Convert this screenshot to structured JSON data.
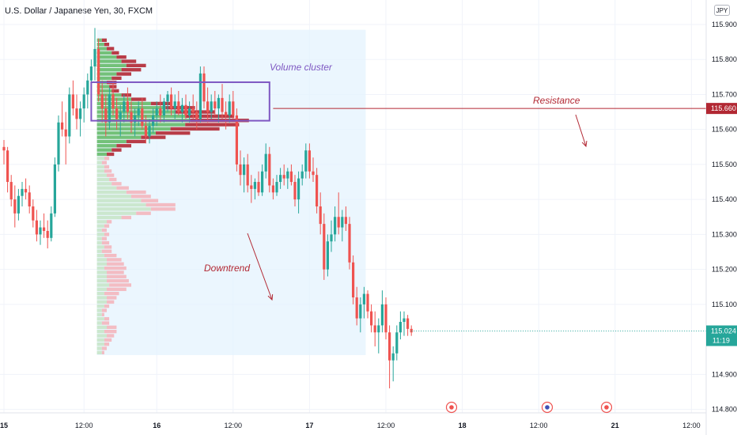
{
  "header": {
    "symbol_title": "U.S. Dollar / Japanese Yen, 30, FXCM",
    "currency": "JPY"
  },
  "colors": {
    "up": "#26a69a",
    "down": "#ef5350",
    "resistance": "#b22833",
    "box": "#7e57c2",
    "vp_up": "#66bb6a",
    "vp_down": "#b22833",
    "vp_up_light": "#c8e6c9",
    "vp_down_light": "#f4b6bd",
    "zone": "#e3f2fd",
    "price_tag": "#26a69a"
  },
  "chart_data": {
    "type": "candlestick",
    "title": "U.S. Dollar / Japanese Yen, 30, FXCM",
    "ylim": [
      114.79,
      115.97
    ],
    "y_ticks": [
      "115.900",
      "115.800",
      "115.700",
      "115.600",
      "115.500",
      "115.400",
      "115.300",
      "115.200",
      "115.100",
      "114.900",
      "114.800"
    ],
    "x_ticks": [
      "15",
      "12:00",
      "16",
      "12:00",
      "17",
      "12:00",
      "18",
      "12:00",
      "21",
      "12:00"
    ],
    "x_ticks_index": [
      0,
      22,
      42,
      63,
      84,
      105,
      126,
      147,
      168,
      189
    ],
    "candles": [
      [
        115.55,
        115.57,
        115.5,
        115.54
      ],
      [
        115.54,
        115.55,
        115.42,
        115.45
      ],
      [
        115.45,
        115.47,
        115.38,
        115.4
      ],
      [
        115.4,
        115.44,
        115.32,
        115.36
      ],
      [
        115.36,
        115.43,
        115.34,
        115.41
      ],
      [
        115.41,
        115.45,
        115.38,
        115.43
      ],
      [
        115.43,
        115.46,
        115.4,
        115.42
      ],
      [
        115.42,
        115.44,
        115.36,
        115.38
      ],
      [
        115.38,
        115.4,
        115.32,
        115.34
      ],
      [
        115.34,
        115.37,
        115.28,
        115.3
      ],
      [
        115.3,
        115.34,
        115.27,
        115.32
      ],
      [
        115.32,
        115.36,
        115.29,
        115.31
      ],
      [
        115.31,
        115.34,
        115.26,
        115.29
      ],
      [
        115.29,
        115.38,
        115.28,
        115.36
      ],
      [
        115.36,
        115.52,
        115.35,
        115.5
      ],
      [
        115.5,
        115.64,
        115.48,
        115.62
      ],
      [
        115.62,
        115.68,
        115.58,
        115.6
      ],
      [
        115.6,
        115.65,
        115.5,
        115.58
      ],
      [
        115.58,
        115.72,
        115.56,
        115.7
      ],
      [
        115.7,
        115.74,
        115.64,
        115.66
      ],
      [
        115.66,
        115.7,
        115.6,
        115.63
      ],
      [
        115.63,
        115.68,
        115.58,
        115.66
      ],
      [
        115.66,
        115.72,
        115.62,
        115.7
      ],
      [
        115.7,
        115.76,
        115.66,
        115.74
      ],
      [
        115.74,
        115.8,
        115.7,
        115.78
      ],
      [
        115.78,
        115.89,
        115.74,
        115.83
      ],
      [
        115.83,
        115.86,
        115.68,
        115.7
      ],
      [
        115.7,
        115.74,
        115.62,
        115.66
      ],
      [
        115.66,
        115.7,
        115.58,
        115.62
      ],
      [
        115.62,
        115.72,
        115.6,
        115.7
      ],
      [
        115.7,
        115.74,
        115.64,
        115.66
      ],
      [
        115.66,
        115.69,
        115.6,
        115.63
      ],
      [
        115.63,
        115.67,
        115.58,
        115.65
      ],
      [
        115.65,
        115.7,
        115.62,
        115.68
      ],
      [
        115.68,
        115.72,
        115.63,
        115.65
      ],
      [
        115.65,
        115.68,
        115.59,
        115.62
      ],
      [
        115.62,
        115.66,
        115.58,
        115.64
      ],
      [
        115.64,
        115.68,
        115.61,
        115.66
      ],
      [
        115.66,
        115.69,
        115.6,
        115.61
      ],
      [
        115.61,
        115.64,
        115.56,
        115.58
      ],
      [
        115.58,
        115.63,
        115.56,
        115.61
      ],
      [
        115.61,
        115.66,
        115.59,
        115.64
      ],
      [
        115.64,
        115.68,
        115.61,
        115.66
      ],
      [
        115.66,
        115.7,
        115.62,
        115.64
      ],
      [
        115.64,
        115.69,
        115.62,
        115.68
      ],
      [
        115.68,
        115.71,
        115.65,
        115.7
      ],
      [
        115.7,
        115.72,
        115.64,
        115.66
      ],
      [
        115.66,
        115.7,
        115.63,
        115.68
      ],
      [
        115.68,
        115.71,
        115.64,
        115.65
      ],
      [
        115.65,
        115.69,
        115.62,
        115.67
      ],
      [
        115.67,
        115.7,
        115.63,
        115.64
      ],
      [
        115.64,
        115.68,
        115.62,
        115.66
      ],
      [
        115.66,
        115.7,
        115.63,
        115.65
      ],
      [
        115.65,
        115.68,
        115.6,
        115.63
      ],
      [
        115.63,
        115.78,
        115.62,
        115.76
      ],
      [
        115.76,
        115.78,
        115.66,
        115.68
      ],
      [
        115.68,
        115.72,
        115.62,
        115.65
      ],
      [
        115.65,
        115.7,
        115.63,
        115.68
      ],
      [
        115.68,
        115.71,
        115.64,
        115.66
      ],
      [
        115.66,
        115.7,
        115.62,
        115.69
      ],
      [
        115.69,
        115.73,
        115.63,
        115.65
      ],
      [
        115.65,
        115.68,
        115.6,
        115.64
      ],
      [
        115.64,
        115.7,
        115.62,
        115.68
      ],
      [
        115.68,
        115.71,
        115.63,
        115.64
      ],
      [
        115.64,
        115.66,
        115.48,
        115.5
      ],
      [
        115.5,
        115.54,
        115.44,
        115.47
      ],
      [
        115.47,
        115.52,
        115.42,
        115.5
      ],
      [
        115.5,
        115.53,
        115.42,
        115.44
      ],
      [
        115.44,
        115.47,
        115.39,
        115.43
      ],
      [
        115.43,
        115.46,
        115.4,
        115.45
      ],
      [
        115.45,
        115.48,
        115.41,
        115.42
      ],
      [
        115.42,
        115.5,
        115.41,
        115.48
      ],
      [
        115.48,
        115.56,
        115.46,
        115.53
      ],
      [
        115.53,
        115.55,
        115.42,
        115.44
      ],
      [
        115.44,
        115.46,
        115.4,
        115.42
      ],
      [
        115.42,
        115.47,
        115.41,
        115.45
      ],
      [
        115.45,
        115.49,
        115.43,
        115.47
      ],
      [
        115.47,
        115.5,
        115.44,
        115.46
      ],
      [
        115.46,
        115.49,
        115.43,
        115.48
      ],
      [
        115.48,
        115.5,
        115.44,
        115.45
      ],
      [
        115.45,
        115.47,
        115.38,
        115.4
      ],
      [
        115.4,
        115.48,
        115.36,
        115.46
      ],
      [
        115.46,
        115.5,
        115.44,
        115.48
      ],
      [
        115.48,
        115.56,
        115.46,
        115.54
      ],
      [
        115.54,
        115.56,
        115.46,
        115.48
      ],
      [
        115.48,
        115.52,
        115.45,
        115.47
      ],
      [
        115.47,
        115.49,
        115.36,
        115.38
      ],
      [
        115.38,
        115.42,
        115.3,
        115.33
      ],
      [
        115.33,
        115.36,
        115.17,
        115.2
      ],
      [
        115.2,
        115.3,
        115.18,
        115.28
      ],
      [
        115.28,
        115.34,
        115.25,
        115.3
      ],
      [
        115.3,
        115.38,
        115.28,
        115.35
      ],
      [
        115.35,
        115.42,
        115.3,
        115.32
      ],
      [
        115.32,
        115.37,
        115.28,
        115.35
      ],
      [
        115.35,
        115.38,
        115.31,
        115.33
      ],
      [
        115.33,
        115.35,
        115.2,
        115.22
      ],
      [
        115.22,
        115.24,
        115.1,
        115.12
      ],
      [
        115.12,
        115.15,
        115.04,
        115.06
      ],
      [
        115.06,
        115.12,
        115.02,
        115.1
      ],
      [
        115.1,
        115.15,
        115.06,
        115.13
      ],
      [
        115.13,
        115.14,
        115.06,
        115.08
      ],
      [
        115.08,
        115.1,
        115.02,
        115.04
      ],
      [
        115.04,
        115.08,
        114.98,
        115.02
      ],
      [
        115.02,
        115.06,
        114.96,
        115.04
      ],
      [
        115.04,
        115.14,
        115.02,
        115.1
      ],
      [
        115.1,
        115.12,
        115.0,
        115.02
      ],
      [
        115.02,
        115.04,
        114.86,
        114.94
      ],
      [
        114.94,
        114.98,
        114.88,
        114.96
      ],
      [
        114.96,
        115.04,
        114.94,
        115.02
      ],
      [
        115.02,
        115.08,
        115.0,
        115.05
      ],
      [
        115.05,
        115.08,
        115.01,
        115.06
      ],
      [
        115.06,
        115.07,
        115.01,
        115.03
      ],
      [
        115.03,
        115.04,
        115.01,
        115.02
      ]
    ],
    "volume_profile": {
      "price_step": 0.01,
      "price_start": 114.95,
      "rows": [
        [
          2,
          1
        ],
        [
          2,
          2
        ],
        [
          3,
          2
        ],
        [
          3,
          3
        ],
        [
          4,
          3
        ],
        [
          3,
          5
        ],
        [
          4,
          4
        ],
        [
          2,
          3
        ],
        [
          3,
          2
        ],
        [
          2,
          1
        ],
        [
          2,
          2
        ],
        [
          3,
          2
        ],
        [
          4,
          3
        ],
        [
          4,
          4
        ],
        [
          3,
          6
        ],
        [
          4,
          8
        ],
        [
          5,
          9
        ],
        [
          4,
          9
        ],
        [
          4,
          8
        ],
        [
          4,
          7
        ],
        [
          3,
          9
        ],
        [
          4,
          7
        ],
        [
          4,
          6
        ],
        [
          3,
          5
        ],
        [
          2,
          4
        ],
        [
          3,
          3
        ],
        [
          2,
          3
        ],
        [
          2,
          2
        ],
        [
          3,
          2
        ],
        [
          2,
          2
        ],
        [
          3,
          2
        ],
        [
          4,
          2
        ],
        [
          10,
          4
        ],
        [
          16,
          6
        ],
        [
          22,
          10
        ],
        [
          20,
          12
        ],
        [
          18,
          7
        ],
        [
          14,
          8
        ],
        [
          12,
          8
        ],
        [
          8,
          5
        ],
        [
          6,
          4
        ],
        [
          5,
          3
        ],
        [
          4,
          3
        ],
        [
          3,
          3
        ],
        [
          3,
          2
        ],
        [
          2,
          2
        ],
        [
          3,
          2
        ],
        [
          4,
          3
        ],
        [
          6,
          4
        ],
        [
          8,
          6
        ],
        [
          12,
          8
        ],
        [
          18,
          10
        ],
        [
          24,
          14
        ],
        [
          30,
          20
        ],
        [
          36,
          22
        ],
        [
          38,
          24
        ],
        [
          36,
          20
        ],
        [
          32,
          16
        ],
        [
          28,
          12
        ],
        [
          22,
          8
        ],
        [
          14,
          6
        ],
        [
          10,
          4
        ],
        [
          6,
          3
        ],
        [
          5,
          3
        ],
        [
          4,
          4
        ],
        [
          6,
          4
        ],
        [
          8,
          6
        ],
        [
          10,
          8
        ],
        [
          12,
          8
        ],
        [
          10,
          6
        ],
        [
          8,
          4
        ],
        [
          6,
          3
        ],
        [
          4,
          3
        ],
        [
          3,
          2
        ],
        [
          2,
          2
        ]
      ]
    },
    "annotations": [
      {
        "text": "Volume cluster",
        "color": "#7e57c2"
      },
      {
        "text": "Resistance",
        "color": "#b22833"
      },
      {
        "text": "Downtrend",
        "color": "#b22833"
      }
    ],
    "resistance_level": 115.66,
    "resistance_label": "115.660",
    "last_price": 115.024,
    "last_price_label": "115.024",
    "countdown": "11:19"
  }
}
